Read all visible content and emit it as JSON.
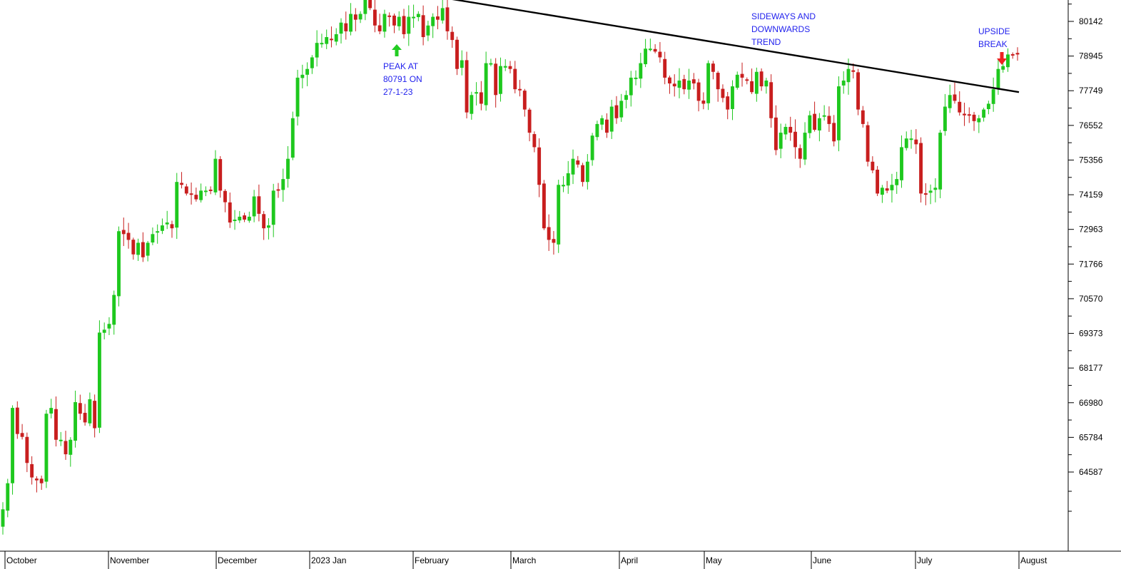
{
  "chart_data": {
    "type": "candlestick",
    "title": "",
    "xlabel": "",
    "ylabel": "",
    "grid": false,
    "y_ticks": [
      64587,
      65784,
      66980,
      68177,
      69373,
      70570,
      71766,
      72963,
      74159,
      75356,
      76552,
      77749,
      78945,
      80142
    ],
    "x_labels": [
      "October",
      "November",
      "December",
      "2023 Jan",
      "February",
      "March",
      "April",
      "May",
      "June",
      "July",
      "August"
    ],
    "colors": {
      "up": "#1ec81e",
      "down": "#c81e1e",
      "annotation": "#2222ee",
      "peak_arrow": "#22cc22",
      "break_arrow": "#ee2222",
      "trendline": "#000000"
    },
    "trendline": {
      "start": {
        "x": "2023-01-23",
        "y": 81300
      },
      "end": {
        "x": "2023-08-01",
        "y": 77700
      }
    },
    "annotations": [
      {
        "id": "peak",
        "lines": [
          "PEAK AT",
          "80791 ON",
          "27-1-23"
        ]
      },
      {
        "id": "sideways",
        "lines": [
          "SIDEWAYS AND",
          "DOWNWARDS",
          "TREND"
        ]
      },
      {
        "id": "break",
        "lines": [
          "UPSIDE",
          "BREAK"
        ]
      }
    ],
    "close_path": [
      63300,
      64200,
      66800,
      65900,
      65800,
      64900,
      64400,
      64300,
      64200,
      66600,
      66800,
      65700,
      65700,
      65200,
      65700,
      67000,
      66600,
      66300,
      67100,
      66100,
      69400,
      69500,
      69700,
      70700,
      72900,
      72800,
      72600,
      72100,
      72500,
      72000,
      72500,
      72800,
      72900,
      73100,
      73200,
      73000,
      74600,
      74500,
      74200,
      74200,
      74000,
      74300,
      74300,
      74300,
      75400,
      74300,
      73900,
      73200,
      73300,
      73400,
      73300,
      73400,
      74100,
      73500,
      73000,
      73100,
      74300,
      74300,
      74700,
      75400,
      76800,
      78200,
      78300,
      78500,
      78900,
      79400,
      79400,
      79600,
      79500,
      79700,
      80100,
      79800,
      80400,
      80200,
      80400,
      80900,
      80600,
      80000,
      79800,
      80400,
      80300,
      80000,
      80300,
      79700,
      80300,
      80300,
      80400,
      79600,
      80000,
      80300,
      80200,
      80600,
      79800,
      79500,
      78500,
      78800,
      77000,
      77600,
      77700,
      77300,
      78700,
      78700,
      77600,
      78600,
      78600,
      78500,
      77800,
      77800,
      77100,
      76300,
      75800,
      74500,
      73000,
      72600,
      72500,
      74500,
      74500,
      74900,
      75400,
      75200,
      74600,
      75300,
      76200,
      76600,
      76800,
      76300,
      77200,
      76800,
      77400,
      77600,
      78200,
      78200,
      78700,
      79200,
      79200,
      79100,
      78900,
      78200,
      78000,
      77900,
      78100,
      77800,
      78100,
      78000,
      77400,
      77300,
      78700,
      78400,
      77800,
      77500,
      77100,
      77900,
      78300,
      78200,
      78100,
      77700,
      78400,
      77900,
      78100,
      76800,
      75700,
      76300,
      76500,
      76300,
      75800,
      75400,
      76300,
      76900,
      76400,
      76800,
      76900,
      76600,
      76000,
      77900,
      78100,
      78500,
      78400,
      77100,
      76600,
      75300,
      75000,
      74200,
      74400,
      74300,
      74500,
      74700,
      75800,
      76100,
      76100,
      75900,
      74200,
      74200,
      74300,
      74400,
      76300,
      77200,
      77600,
      77400,
      77000,
      76900,
      76900,
      76700,
      76800,
      77100,
      77300,
      77800,
      78500,
      78600,
      79000,
      79000,
      79000
    ]
  }
}
